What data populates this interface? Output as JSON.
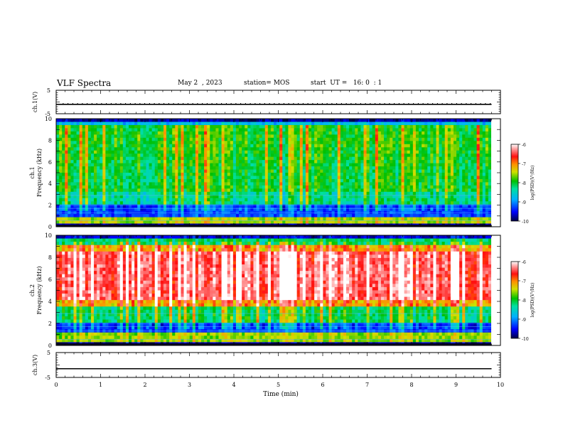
{
  "header": {
    "title": "VLF Spectra",
    "date": "May 2  , 2023",
    "station": "station= MOS",
    "start": "start  UT =   16: 0  : 1"
  },
  "chart_data": [
    {
      "type": "line",
      "panel": "ch1-voltage",
      "ylabel": "ch.1(V)",
      "ylim": [
        -5,
        5
      ],
      "yticks": [
        "5",
        "-5"
      ],
      "series": [
        {
          "x": [
            0,
            9.8
          ],
          "values": [
            -1,
            -1
          ]
        }
      ]
    },
    {
      "type": "heatmap",
      "panel": "ch1-spectrogram",
      "ylabel_top": "ch.1",
      "ylabel": "Frequency (kHz)",
      "ylim": [
        0,
        10
      ],
      "yticks": [
        "0",
        "2",
        "4",
        "6",
        "8",
        "10"
      ],
      "xlim": [
        0,
        10
      ],
      "colorbar": {
        "label": "log(PSD)(V²/Hz)",
        "ticks": [
          "-6",
          "-7",
          "-8",
          "-9",
          "-10"
        ],
        "range": [
          -10,
          -6
        ]
      }
    },
    {
      "type": "heatmap",
      "panel": "ch2-spectrogram",
      "ylabel_top": "ch.2",
      "ylabel": "Frequency (kHz)",
      "ylim": [
        0,
        10
      ],
      "yticks": [
        "0",
        "2",
        "4",
        "6",
        "8",
        "10"
      ],
      "xlim": [
        0,
        10
      ],
      "colorbar": {
        "label": "log(PSD)(V²/Hz)",
        "ticks": [
          "-6",
          "-7",
          "-8",
          "-9",
          "-10"
        ],
        "range": [
          -10,
          -6
        ]
      }
    },
    {
      "type": "line",
      "panel": "ch3-voltage",
      "ylabel": "ch.3(V)",
      "ylim": [
        -5,
        5
      ],
      "yticks": [
        "5",
        "-5"
      ],
      "xlabel": "Time  (min)",
      "xlim": [
        0,
        10
      ],
      "xticks": [
        "0",
        "1",
        "2",
        "3",
        "4",
        "5",
        "6",
        "7",
        "8",
        "9",
        "10"
      ],
      "series": [
        {
          "x": [
            0,
            9.8
          ],
          "values": [
            -1.5,
            -1.5
          ]
        }
      ]
    }
  ],
  "colors": {
    "scale": [
      "#000033",
      "#0000ff",
      "#00a0ff",
      "#00e0c0",
      "#00c000",
      "#c8e000",
      "#ffa000",
      "#ff2000",
      "#ff8080",
      "#ffffff"
    ]
  }
}
